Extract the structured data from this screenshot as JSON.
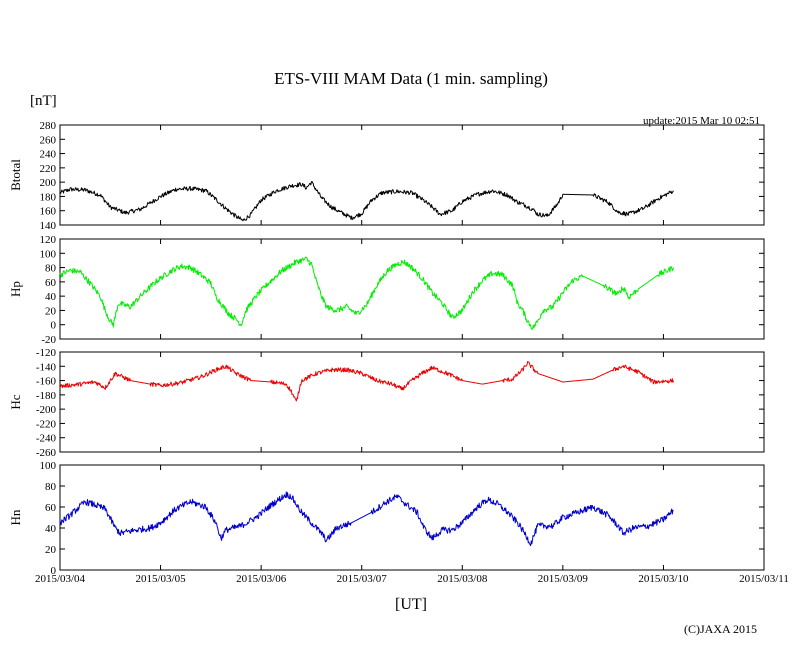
{
  "chart_data": {
    "type": "line",
    "title": "ETS-VIII MAM Data (1 min. sampling)",
    "unit_label": "[nT]",
    "update_text": "update:2015 Mar 10 02:51",
    "xlabel": "[UT]",
    "copyright": "(C)JAXA 2015",
    "x_ticks": [
      "2015/03/04",
      "2015/03/05",
      "2015/03/06",
      "2015/03/07",
      "2015/03/08",
      "2015/03/09",
      "2015/03/10",
      "2015/03/11"
    ],
    "xlim": [
      0,
      7
    ],
    "panels": [
      {
        "name": "btotal",
        "ylabel": "Btotal",
        "color": "#000000",
        "ylim": [
          140,
          280
        ],
        "yticks": [
          140,
          160,
          180,
          200,
          220,
          240,
          260,
          280
        ],
        "noise": 3,
        "points": [
          [
            0,
            185
          ],
          [
            0.1,
            190
          ],
          [
            0.25,
            189
          ],
          [
            0.4,
            182
          ],
          [
            0.5,
            165
          ],
          [
            0.65,
            157
          ],
          [
            0.8,
            162
          ],
          [
            1.0,
            180
          ],
          [
            1.15,
            190
          ],
          [
            1.3,
            191
          ],
          [
            1.45,
            188
          ],
          [
            1.55,
            176
          ],
          [
            1.65,
            163
          ],
          [
            1.75,
            152
          ],
          [
            1.82,
            146
          ],
          [
            1.9,
            155
          ],
          [
            2.0,
            175
          ],
          [
            2.15,
            188
          ],
          [
            2.3,
            195
          ],
          [
            2.4,
            197
          ],
          [
            2.45,
            192
          ],
          [
            2.5,
            200
          ],
          [
            2.6,
            178
          ],
          [
            2.7,
            165
          ],
          [
            2.8,
            157
          ],
          [
            2.9,
            150
          ],
          [
            3.0,
            156
          ],
          [
            3.1,
            175
          ],
          [
            3.2,
            185
          ],
          [
            3.35,
            187
          ],
          [
            3.5,
            185
          ],
          [
            3.6,
            176
          ],
          [
            3.7,
            165
          ],
          [
            3.78,
            155
          ],
          [
            3.9,
            160
          ],
          [
            4.0,
            173
          ],
          [
            4.15,
            183
          ],
          [
            4.3,
            188
          ],
          [
            4.45,
            182
          ],
          [
            4.55,
            172
          ],
          [
            4.62,
            168
          ],
          [
            4.7,
            162
          ],
          [
            4.75,
            155
          ],
          [
            4.85,
            153
          ],
          [
            4.95,
            170
          ],
          [
            5.0,
            183
          ],
          [
            5.3,
            182
          ],
          [
            5.45,
            172
          ],
          [
            5.55,
            158
          ],
          [
            5.65,
            155
          ],
          [
            5.8,
            163
          ],
          [
            5.95,
            177
          ],
          [
            6.1,
            188
          ]
        ]
      },
      {
        "name": "hp",
        "ylabel": "Hp",
        "color": "#00ee00",
        "ylim": [
          -20,
          120
        ],
        "yticks": [
          -20,
          0,
          20,
          40,
          60,
          80,
          100,
          120
        ],
        "noise": 4,
        "points": [
          [
            0,
            70
          ],
          [
            0.1,
            76
          ],
          [
            0.2,
            74
          ],
          [
            0.3,
            58
          ],
          [
            0.4,
            40
          ],
          [
            0.45,
            20
          ],
          [
            0.5,
            5
          ],
          [
            0.53,
            0
          ],
          [
            0.58,
            30
          ],
          [
            0.7,
            25
          ],
          [
            0.8,
            40
          ],
          [
            0.95,
            60
          ],
          [
            1.1,
            75
          ],
          [
            1.2,
            82
          ],
          [
            1.3,
            80
          ],
          [
            1.4,
            70
          ],
          [
            1.5,
            58
          ],
          [
            1.55,
            40
          ],
          [
            1.6,
            30
          ],
          [
            1.68,
            15
          ],
          [
            1.75,
            8
          ],
          [
            1.8,
            0
          ],
          [
            1.85,
            20
          ],
          [
            1.95,
            40
          ],
          [
            2.05,
            55
          ],
          [
            2.2,
            75
          ],
          [
            2.35,
            88
          ],
          [
            2.45,
            92
          ],
          [
            2.5,
            85
          ],
          [
            2.55,
            60
          ],
          [
            2.6,
            40
          ],
          [
            2.65,
            25
          ],
          [
            2.75,
            20
          ],
          [
            2.85,
            25
          ],
          [
            2.95,
            15
          ],
          [
            3.05,
            28
          ],
          [
            3.15,
            55
          ],
          [
            3.25,
            75
          ],
          [
            3.35,
            85
          ],
          [
            3.42,
            88
          ],
          [
            3.5,
            80
          ],
          [
            3.6,
            65
          ],
          [
            3.7,
            45
          ],
          [
            3.8,
            30
          ],
          [
            3.9,
            10
          ],
          [
            4.0,
            20
          ],
          [
            4.1,
            45
          ],
          [
            4.2,
            62
          ],
          [
            4.3,
            72
          ],
          [
            4.4,
            70
          ],
          [
            4.5,
            55
          ],
          [
            4.55,
            30
          ],
          [
            4.6,
            20
          ],
          [
            4.65,
            5
          ],
          [
            4.7,
            -5
          ],
          [
            4.75,
            5
          ],
          [
            4.8,
            20
          ],
          [
            4.9,
            25
          ],
          [
            5.0,
            45
          ],
          [
            5.1,
            62
          ],
          [
            5.2,
            68
          ],
          [
            5.4,
            55
          ],
          [
            5.55,
            42
          ],
          [
            5.58,
            50
          ],
          [
            5.62,
            50
          ],
          [
            5.65,
            38
          ],
          [
            5.75,
            50
          ],
          [
            5.95,
            70
          ],
          [
            6.1,
            80
          ]
        ]
      },
      {
        "name": "hc",
        "ylabel": "Hc",
        "color": "#ee0000",
        "ylim": [
          -260,
          -120
        ],
        "yticks": [
          -260,
          -240,
          -220,
          -200,
          -180,
          -160,
          -140,
          -120
        ],
        "noise": 3,
        "points": [
          [
            0,
            -168
          ],
          [
            0.2,
            -165
          ],
          [
            0.35,
            -162
          ],
          [
            0.45,
            -170
          ],
          [
            0.55,
            -150
          ],
          [
            0.7,
            -160
          ],
          [
            0.9,
            -165
          ],
          [
            1.0,
            -167
          ],
          [
            1.2,
            -163
          ],
          [
            1.4,
            -155
          ],
          [
            1.55,
            -145
          ],
          [
            1.65,
            -140
          ],
          [
            1.75,
            -150
          ],
          [
            1.9,
            -160
          ],
          [
            2.1,
            -162
          ],
          [
            2.25,
            -165
          ],
          [
            2.3,
            -175
          ],
          [
            2.35,
            -190
          ],
          [
            2.4,
            -160
          ],
          [
            2.55,
            -150
          ],
          [
            2.7,
            -145
          ],
          [
            2.85,
            -145
          ],
          [
            3.0,
            -150
          ],
          [
            3.15,
            -160
          ],
          [
            3.3,
            -165
          ],
          [
            3.4,
            -172
          ],
          [
            3.5,
            -160
          ],
          [
            3.6,
            -150
          ],
          [
            3.7,
            -142
          ],
          [
            3.85,
            -150
          ],
          [
            4.0,
            -160
          ],
          [
            4.2,
            -165
          ],
          [
            4.4,
            -160
          ],
          [
            4.5,
            -158
          ],
          [
            4.6,
            -145
          ],
          [
            4.65,
            -135
          ],
          [
            4.75,
            -150
          ],
          [
            5.0,
            -162
          ],
          [
            5.3,
            -158
          ],
          [
            5.5,
            -145
          ],
          [
            5.6,
            -140
          ],
          [
            5.75,
            -148
          ],
          [
            5.9,
            -162
          ],
          [
            6.1,
            -160
          ]
        ]
      },
      {
        "name": "hn",
        "ylabel": "Hn",
        "color": "#0000cc",
        "ylim": [
          0,
          100
        ],
        "yticks": [
          0,
          20,
          40,
          60,
          80,
          100
        ],
        "noise": 3,
        "points": [
          [
            0,
            45
          ],
          [
            0.1,
            52
          ],
          [
            0.25,
            65
          ],
          [
            0.35,
            62
          ],
          [
            0.45,
            58
          ],
          [
            0.55,
            40
          ],
          [
            0.6,
            35
          ],
          [
            0.75,
            38
          ],
          [
            0.9,
            40
          ],
          [
            1.0,
            45
          ],
          [
            1.15,
            58
          ],
          [
            1.3,
            65
          ],
          [
            1.45,
            60
          ],
          [
            1.55,
            45
          ],
          [
            1.6,
            30
          ],
          [
            1.65,
            38
          ],
          [
            1.8,
            42
          ],
          [
            1.95,
            50
          ],
          [
            2.1,
            62
          ],
          [
            2.25,
            72
          ],
          [
            2.3,
            70
          ],
          [
            2.4,
            55
          ],
          [
            2.5,
            45
          ],
          [
            2.6,
            35
          ],
          [
            2.65,
            28
          ],
          [
            2.75,
            40
          ],
          [
            2.9,
            45
          ],
          [
            3.1,
            55
          ],
          [
            3.25,
            65
          ],
          [
            3.35,
            70
          ],
          [
            3.45,
            62
          ],
          [
            3.55,
            55
          ],
          [
            3.62,
            40
          ],
          [
            3.7,
            30
          ],
          [
            3.8,
            38
          ],
          [
            3.9,
            38
          ],
          [
            4.0,
            45
          ],
          [
            4.15,
            60
          ],
          [
            4.25,
            67
          ],
          [
            4.35,
            63
          ],
          [
            4.45,
            55
          ],
          [
            4.55,
            45
          ],
          [
            4.62,
            35
          ],
          [
            4.68,
            25
          ],
          [
            4.75,
            42
          ],
          [
            4.9,
            42
          ],
          [
            5.0,
            50
          ],
          [
            5.15,
            55
          ],
          [
            5.3,
            60
          ],
          [
            5.45,
            52
          ],
          [
            5.55,
            42
          ],
          [
            5.6,
            35
          ],
          [
            5.7,
            40
          ],
          [
            5.85,
            42
          ],
          [
            6.0,
            48
          ],
          [
            6.1,
            57
          ]
        ]
      }
    ]
  }
}
